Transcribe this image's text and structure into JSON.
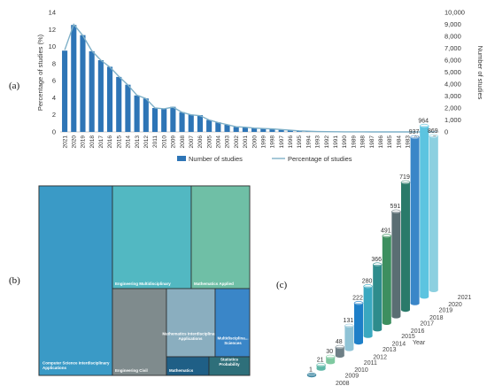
{
  "panels": {
    "a": "(a)",
    "b": "(b)",
    "c": "(c)"
  },
  "chart_data": [
    {
      "type": "bar",
      "panel": "a",
      "categories": [
        "2021",
        "2020",
        "2019",
        "2018",
        "2017",
        "2016",
        "2015",
        "2014",
        "2013",
        "2012",
        "2011",
        "2010",
        "2009",
        "2008",
        "2007",
        "2006",
        "2005",
        "2004",
        "2003",
        "2002",
        "2001",
        "2000",
        "1999",
        "1998",
        "1997",
        "1996",
        "1995",
        "1994",
        "1993",
        "1992",
        "1991",
        "1990",
        "1989",
        "1988",
        "1987",
        "1986",
        "1985",
        "1984",
        "1983",
        "1982",
        "1981",
        "1980"
      ],
      "series": [
        {
          "name": "Number of studies",
          "kind": "bar",
          "axis": "right",
          "color": "#2e75b6",
          "values": [
            6800,
            8950,
            8100,
            6750,
            6000,
            5450,
            4600,
            3950,
            3050,
            2800,
            2000,
            1950,
            2100,
            1650,
            1450,
            1400,
            1000,
            800,
            600,
            420,
            380,
            320,
            280,
            260,
            200,
            140,
            80,
            50,
            30,
            20,
            12,
            8,
            5,
            4,
            3,
            2,
            2,
            1,
            1,
            1,
            1,
            1
          ]
        },
        {
          "name": "Percentage of studies",
          "kind": "line",
          "axis": "left",
          "color": "#7fb0c8",
          "values": [
            9.6,
            12.6,
            11.3,
            9.5,
            8.4,
            7.6,
            6.5,
            5.5,
            4.3,
            3.9,
            2.8,
            2.7,
            2.9,
            2.3,
            2.0,
            1.9,
            1.4,
            1.1,
            0.85,
            0.6,
            0.55,
            0.45,
            0.4,
            0.35,
            0.28,
            0.2,
            0.12,
            0.08,
            0.05,
            0.03,
            0.02,
            0.01,
            0.01,
            0.01,
            0.0,
            0.0,
            0.0,
            0.0,
            0.0,
            0.0,
            0.0,
            0.0
          ]
        }
      ],
      "ylabel": "Percentage of studies (%)",
      "ylabel_right": "Number of studies",
      "ylim": [
        0,
        14
      ],
      "yticks": [
        "0",
        "2",
        "4",
        "6",
        "8",
        "10",
        "12",
        "14"
      ],
      "ylim_right": [
        0,
        10000
      ],
      "yticks_right": [
        "0",
        "1,000",
        "2,000",
        "3,000",
        "4,000",
        "5,000",
        "6,000",
        "7,000",
        "8,000",
        "9,000",
        "10,000"
      ],
      "legend": [
        "Number of studies",
        "Percentage of studies"
      ],
      "legend_position": "bottom"
    },
    {
      "type": "treemap",
      "panel": "b",
      "items": [
        {
          "label": "Computer Science Interdisciplinary Applications",
          "color": "#3a9ac6"
        },
        {
          "label": "Engineering Multidisciplinary",
          "color": "#52b8c2"
        },
        {
          "label": "Mathematics Applied",
          "color": "#6fbfa6"
        },
        {
          "label": "Engineering Civil",
          "color": "#7f8b8d"
        },
        {
          "label": "Mathematics Interdisciplinary Applications",
          "color": "#8aaebf"
        },
        {
          "label": "Multidisciplina... Sciences",
          "color": "#3a86c8"
        },
        {
          "label": "Mathematics",
          "color": "#1f5f86"
        },
        {
          "label": "Statistics Probability",
          "color": "#2e6f7a"
        }
      ]
    },
    {
      "type": "bar",
      "panel": "c",
      "categories": [
        "2008",
        "2009",
        "2010",
        "2011",
        "2012",
        "2013",
        "2014",
        "2015",
        "2016",
        "2017",
        "2018",
        "2019",
        "2020",
        "2021"
      ],
      "values": [
        1,
        21,
        30,
        48,
        131,
        222,
        280,
        366,
        491,
        591,
        719,
        937,
        964,
        869
      ],
      "value_labels": [
        "1",
        "21",
        "30",
        "48",
        "131",
        "222",
        "280",
        "366",
        "491",
        "591",
        "719",
        "937",
        "964",
        "869"
      ],
      "xlabel": "Year",
      "colors": [
        "#2e7d9a",
        "#5fb8a8",
        "#7fc9a0",
        "#6e7f86",
        "#8fc3d6",
        "#1e7fc8",
        "#3aa8c0",
        "#2e8c8c",
        "#3d8f5f",
        "#5a6e73",
        "#2a7a6a",
        "#3a86c8",
        "#5cc4e0",
        "#8cd0e0"
      ]
    }
  ]
}
